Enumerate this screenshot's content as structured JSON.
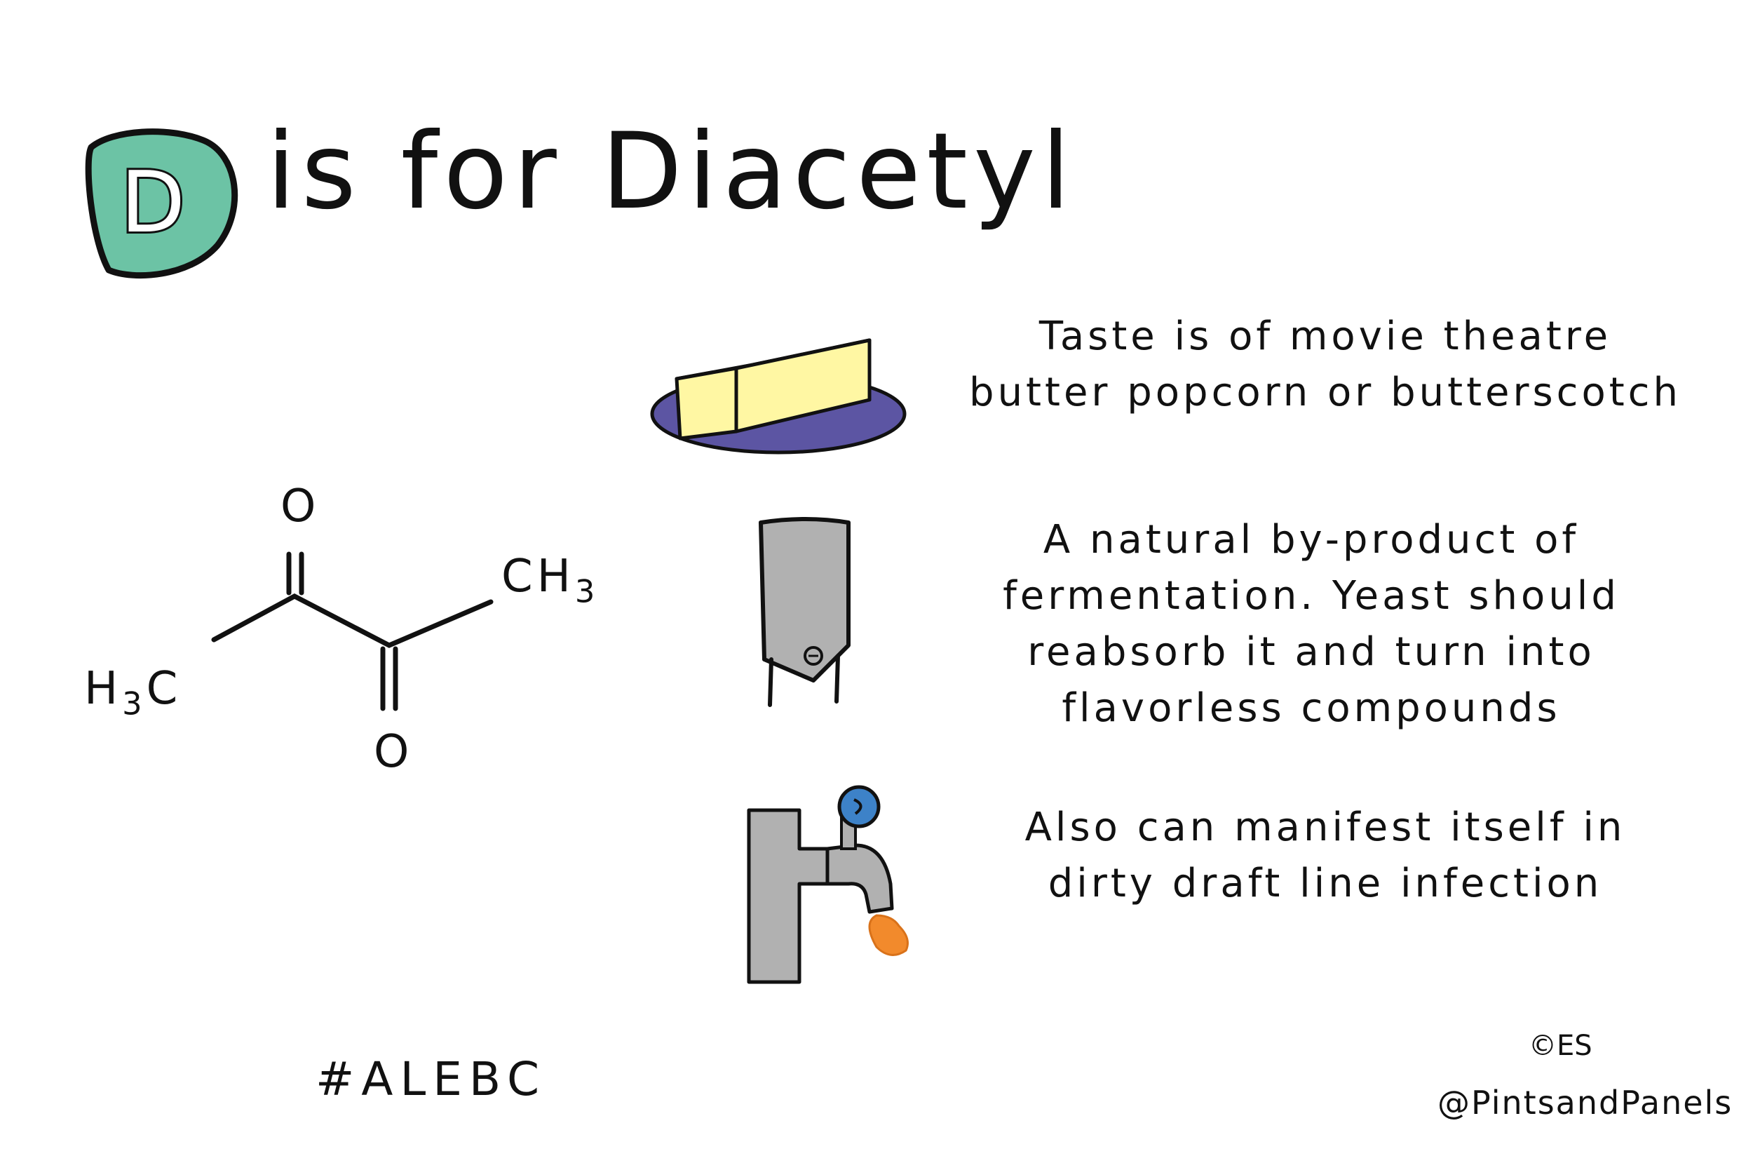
{
  "title": {
    "letter": "D",
    "rest": "is for Diacetyl",
    "letter_color": "#6cc3a5"
  },
  "molecule": {
    "top_oxygen": "O",
    "bottom_oxygen": "O",
    "left_group": "H",
    "left_group_sub": "3",
    "left_group_end": "C",
    "right_group": "CH",
    "right_group_sub": "3"
  },
  "facts": {
    "taste": "Taste is of movie theatre\nbutter popcorn or butterscotch",
    "byproduct": "A natural by-product of\nfermentation. Yeast should\nreabsorb it and turn into\nflavorless compounds",
    "draft": "Also can manifest itself in\ndirty draft line infection"
  },
  "icons": {
    "butter": "butter-dish-icon",
    "fermenter": "fermenter-tank-icon",
    "tap": "draft-tap-icon"
  },
  "colors": {
    "butter": "#fff7a3",
    "dish": "#5c55a3",
    "steel": "#b1b1b1",
    "tap_knob": "#3d82c8",
    "drip": "#f28a2c"
  },
  "footer": {
    "hashtag": "#ALEBC",
    "copyright": "©ES",
    "handle": "@PintsandPanels"
  }
}
